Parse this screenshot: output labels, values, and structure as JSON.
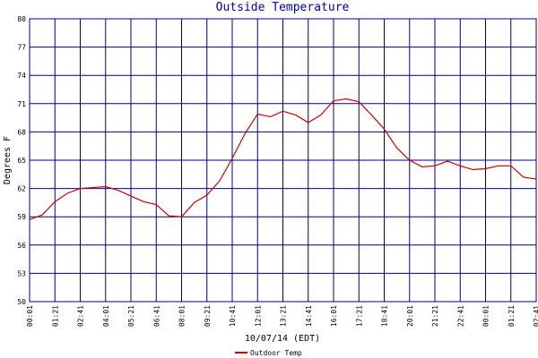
{
  "chart_data": {
    "type": "line",
    "title": "Outside Temperature",
    "y_label": "Degrees F",
    "x_label": "10/07/14 (EDT)",
    "xlim": [
      0,
      20
    ],
    "xticks": [
      {
        "value": 0,
        "label": "00:01"
      },
      {
        "value": 1,
        "label": "01:21"
      },
      {
        "value": 2,
        "label": "02:41"
      },
      {
        "value": 3,
        "label": "04:01"
      },
      {
        "value": 4,
        "label": "05:21"
      },
      {
        "value": 5,
        "label": "06:41"
      },
      {
        "value": 6,
        "label": "08:01"
      },
      {
        "value": 7,
        "label": "09:21"
      },
      {
        "value": 8,
        "label": "10:41"
      },
      {
        "value": 9,
        "label": "12:01"
      },
      {
        "value": 10,
        "label": "13:21"
      },
      {
        "value": 11,
        "label": "14:41"
      },
      {
        "value": 12,
        "label": "16:01"
      },
      {
        "value": 13,
        "label": "17:21"
      },
      {
        "value": 14,
        "label": "18:41"
      },
      {
        "value": 15,
        "label": "20:01"
      },
      {
        "value": 16,
        "label": "21:21"
      },
      {
        "value": 17,
        "label": "22:41"
      },
      {
        "value": 18,
        "label": "00:01"
      },
      {
        "value": 19,
        "label": "01:21"
      },
      {
        "value": 20,
        "label": "02:41"
      }
    ],
    "ylim": [
      50,
      80
    ],
    "yticks": [
      50,
      53,
      56,
      59,
      62,
      65,
      68,
      71,
      74,
      77,
      80
    ],
    "grid": true,
    "grid_color": "#000080",
    "x": [
      0,
      0.5,
      1,
      1.5,
      2,
      2.5,
      3,
      3.5,
      4,
      4.5,
      5,
      5.5,
      6,
      6.5,
      7,
      7.5,
      8,
      8.5,
      9,
      9.5,
      10,
      10.5,
      11,
      11.5,
      12,
      12.5,
      13,
      13.5,
      14,
      14.5,
      15,
      15.5,
      16,
      16.5,
      17,
      17.5,
      18,
      18.5,
      19,
      19.5,
      20
    ],
    "series": [
      {
        "name": "Outdoor Temp",
        "color": "#cc0000",
        "values": [
          58.7,
          59.2,
          60.6,
          61.5,
          62.0,
          62.1,
          62.2,
          61.8,
          61.2,
          60.6,
          60.3,
          59.1,
          59.0,
          60.5,
          61.3,
          62.8,
          65.2,
          67.8,
          69.9,
          69.6,
          70.2,
          69.8,
          69.0,
          69.8,
          71.3,
          71.5,
          71.2,
          69.8,
          68.3,
          66.3,
          65.0,
          64.3,
          64.4,
          64.9,
          64.4,
          64.0,
          64.1,
          64.4,
          64.4,
          63.2,
          63.0
        ]
      }
    ]
  }
}
